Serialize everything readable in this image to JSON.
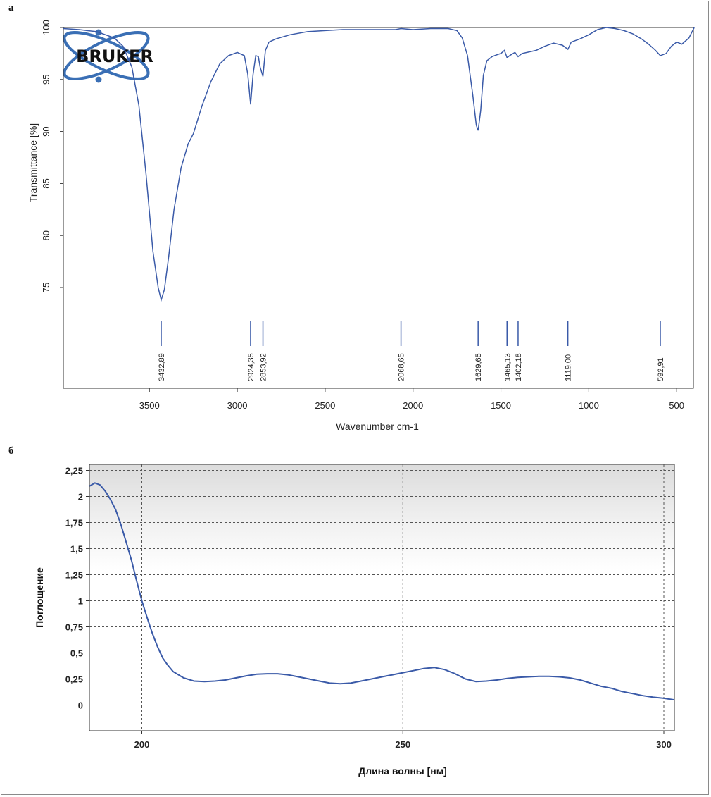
{
  "panels": {
    "a_label": "а",
    "b_label": "б"
  },
  "logo": {
    "text": "BRUKER",
    "color": "#3a6fb5"
  },
  "chart_data": [
    {
      "type": "line",
      "xlabel": "Wavenumber cm-1",
      "ylabel": "Transmittance [%]",
      "xlim": [
        4000,
        400
      ],
      "ylim": [
        66.5,
        100.2
      ],
      "x_ticks": [
        3500,
        3000,
        2500,
        2000,
        1500,
        1000,
        500
      ],
      "y_ticks": [
        75,
        80,
        85,
        90,
        95,
        100
      ],
      "grid": false,
      "line_color": "#3a5aa8",
      "series": [
        {
          "x": [
            3990,
            3900,
            3800,
            3700,
            3650,
            3600,
            3560,
            3520,
            3480,
            3450,
            3432.89,
            3415,
            3390,
            3360,
            3320,
            3280,
            3250,
            3200,
            3150,
            3100,
            3050,
            3000,
            2960,
            2940,
            2924.35,
            2910,
            2895,
            2880,
            2870,
            2853.92,
            2840,
            2820,
            2780,
            2700,
            2600,
            2500,
            2400,
            2300,
            2200,
            2100,
            2068.65,
            2000,
            1900,
            1800,
            1750,
            1720,
            1690,
            1660,
            1640,
            1629.65,
            1615,
            1600,
            1580,
            1550,
            1520,
            1500,
            1480,
            1465.13,
            1450,
            1420,
            1402.18,
            1380,
            1300,
            1250,
            1200,
            1150,
            1119,
            1100,
            1050,
            1000,
            950,
            900,
            850,
            800,
            750,
            700,
            660,
            620,
            592.91,
            560,
            530,
            500,
            470,
            430,
            400
          ],
          "y": [
            99.9,
            99.8,
            99.6,
            99.0,
            98.2,
            96.2,
            92.5,
            86.0,
            78.5,
            75.0,
            73.8,
            74.8,
            78.0,
            82.5,
            86.5,
            88.8,
            89.8,
            92.5,
            94.8,
            96.5,
            97.3,
            97.6,
            97.3,
            95.5,
            92.6,
            95.5,
            97.3,
            97.2,
            96.2,
            95.3,
            97.8,
            98.6,
            98.9,
            99.3,
            99.6,
            99.7,
            99.8,
            99.8,
            99.8,
            99.8,
            99.9,
            99.8,
            99.9,
            99.9,
            99.7,
            99.0,
            97.3,
            93.5,
            90.6,
            90.1,
            92.0,
            95.4,
            96.8,
            97.2,
            97.4,
            97.5,
            97.8,
            97.1,
            97.3,
            97.6,
            97.2,
            97.5,
            97.8,
            98.2,
            98.5,
            98.3,
            97.9,
            98.6,
            98.9,
            99.3,
            99.8,
            100.0,
            99.9,
            99.7,
            99.4,
            98.9,
            98.4,
            97.8,
            97.3,
            97.5,
            98.2,
            98.6,
            98.4,
            99.0,
            100.0
          ]
        }
      ],
      "peaks": [
        {
          "x": 3432.89,
          "label": "3432,89"
        },
        {
          "x": 2924.35,
          "label": "2924,35"
        },
        {
          "x": 2853.92,
          "label": "2853,92"
        },
        {
          "x": 2068.65,
          "label": "2068,65"
        },
        {
          "x": 1629.65,
          "label": "1629,65"
        },
        {
          "x": 1465.13,
          "label": "1465,13"
        },
        {
          "x": 1402.18,
          "label": "1402,18"
        },
        {
          "x": 1119.0,
          "label": "1119,00"
        },
        {
          "x": 592.91,
          "label": "592,91"
        }
      ]
    },
    {
      "type": "line",
      "xlabel": "Длина волны [нм]",
      "ylabel": "Поглощение",
      "xlim": [
        190,
        302
      ],
      "ylim": [
        -0.2,
        2.32
      ],
      "x_ticks": [
        200,
        250,
        300
      ],
      "x_tick_labels": [
        "200",
        "250",
        "300"
      ],
      "y_ticks": [
        0,
        0.25,
        0.5,
        0.75,
        1,
        1.25,
        1.5,
        1.75,
        2,
        2.25
      ],
      "y_tick_labels": [
        "0",
        "0,25",
        "0,5",
        "0,75",
        "1",
        "1,25",
        "1,5",
        "1,75",
        "2",
        "2,25"
      ],
      "grid": true,
      "line_color": "#3a5aa8",
      "series": [
        {
          "x": [
            190,
            191,
            192,
            193,
            194,
            195,
            196,
            197,
            198,
            199,
            200,
            201,
            202,
            203,
            204,
            205,
            206,
            208,
            210,
            212,
            214,
            216,
            218,
            220,
            222,
            224,
            226,
            228,
            230,
            232,
            234,
            236,
            238,
            240,
            242,
            244,
            246,
            248,
            250,
            252,
            254,
            256,
            258,
            260,
            262,
            264,
            266,
            268,
            270,
            272,
            274,
            276,
            278,
            280,
            282,
            284,
            286,
            288,
            290,
            292,
            294,
            296,
            298,
            300,
            302
          ],
          "y": [
            2.1,
            2.13,
            2.11,
            2.05,
            1.97,
            1.87,
            1.73,
            1.56,
            1.39,
            1.19,
            1.0,
            0.84,
            0.69,
            0.56,
            0.45,
            0.38,
            0.32,
            0.26,
            0.23,
            0.225,
            0.23,
            0.24,
            0.26,
            0.28,
            0.295,
            0.3,
            0.3,
            0.29,
            0.27,
            0.25,
            0.23,
            0.21,
            0.205,
            0.21,
            0.23,
            0.25,
            0.27,
            0.29,
            0.31,
            0.33,
            0.35,
            0.36,
            0.34,
            0.3,
            0.25,
            0.225,
            0.23,
            0.24,
            0.255,
            0.265,
            0.27,
            0.275,
            0.275,
            0.27,
            0.26,
            0.24,
            0.21,
            0.18,
            0.16,
            0.13,
            0.11,
            0.09,
            0.075,
            0.065,
            0.05
          ]
        }
      ]
    }
  ]
}
